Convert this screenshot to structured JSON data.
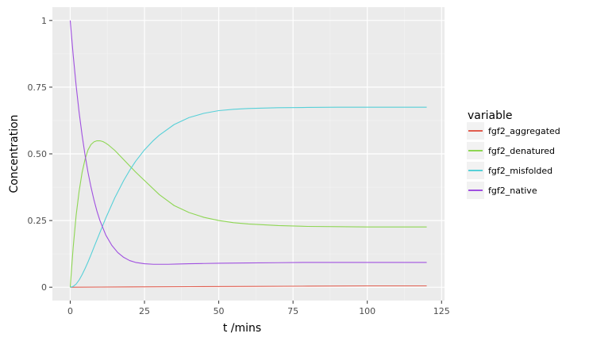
{
  "chart_data": {
    "type": "line",
    "xlabel": "t /mins",
    "ylabel": "Concentration",
    "xlim": [
      -6,
      126
    ],
    "ylim": [
      -0.05,
      1.05
    ],
    "x_ticks": [
      0,
      25,
      50,
      75,
      100,
      125
    ],
    "x_tick_labels": [
      "0",
      "25",
      "50",
      "75",
      "100",
      "125"
    ],
    "y_ticks": [
      0,
      0.25,
      0.5,
      0.75,
      1
    ],
    "y_tick_labels": [
      "0",
      "0.25",
      "0.50",
      "0.75",
      "1"
    ],
    "grid": true,
    "legend": {
      "title": "variable",
      "position": "right"
    },
    "series": [
      {
        "name": "fgf2_aggregated",
        "color": "#E15D4F",
        "x": [
          0,
          20,
          40,
          60,
          80,
          100,
          120
        ],
        "y": [
          0,
          0.001,
          0.002,
          0.003,
          0.004,
          0.005,
          0.005
        ]
      },
      {
        "name": "fgf2_denatured",
        "color": "#8ED653",
        "x": [
          0,
          1,
          2,
          3,
          4,
          5,
          6,
          7,
          8,
          9,
          10,
          11,
          12,
          13,
          15,
          17,
          20,
          22,
          25,
          30,
          35,
          40,
          45,
          50,
          55,
          60,
          70,
          80,
          90,
          100,
          110,
          120
        ],
        "y": [
          0,
          0.15,
          0.27,
          0.36,
          0.43,
          0.48,
          0.515,
          0.535,
          0.545,
          0.549,
          0.549,
          0.546,
          0.54,
          0.532,
          0.513,
          0.49,
          0.455,
          0.432,
          0.4,
          0.347,
          0.306,
          0.28,
          0.262,
          0.25,
          0.242,
          0.237,
          0.231,
          0.228,
          0.227,
          0.226,
          0.226,
          0.226
        ]
      },
      {
        "name": "fgf2_misfolded",
        "color": "#57D0D8",
        "x": [
          0,
          1,
          2,
          3,
          4,
          5,
          6,
          7,
          8,
          10,
          12,
          15,
          18,
          20,
          22,
          25,
          28,
          30,
          35,
          40,
          45,
          50,
          55,
          60,
          70,
          80,
          90,
          100,
          110,
          120
        ],
        "y": [
          0,
          0.003,
          0.012,
          0.027,
          0.047,
          0.07,
          0.095,
          0.122,
          0.15,
          0.205,
          0.26,
          0.335,
          0.4,
          0.438,
          0.472,
          0.515,
          0.55,
          0.57,
          0.61,
          0.636,
          0.652,
          0.662,
          0.667,
          0.67,
          0.673,
          0.674,
          0.675,
          0.675,
          0.675,
          0.675
        ]
      },
      {
        "name": "fgf2_native",
        "color": "#A050E0",
        "x": [
          0,
          1,
          2,
          3,
          4,
          5,
          6,
          7,
          8,
          9,
          10,
          12,
          14,
          16,
          18,
          20,
          22,
          25,
          28,
          30,
          33,
          36,
          40,
          45,
          50,
          60,
          70,
          80,
          90,
          100,
          110,
          120
        ],
        "y": [
          1,
          0.87,
          0.755,
          0.655,
          0.57,
          0.495,
          0.43,
          0.375,
          0.327,
          0.285,
          0.25,
          0.195,
          0.157,
          0.13,
          0.112,
          0.1,
          0.093,
          0.088,
          0.086,
          0.086,
          0.086,
          0.087,
          0.088,
          0.089,
          0.09,
          0.091,
          0.092,
          0.093,
          0.093,
          0.093,
          0.093,
          0.093
        ]
      }
    ]
  }
}
